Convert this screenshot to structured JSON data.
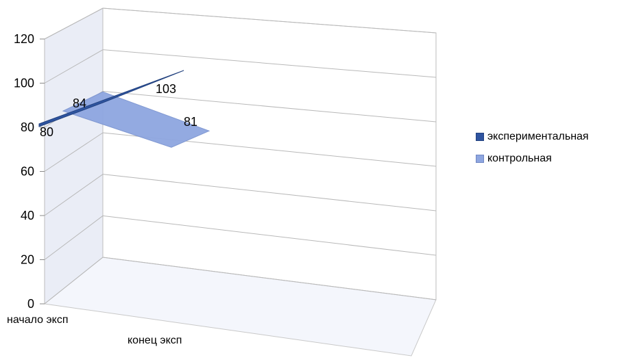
{
  "chart_data": {
    "type": "area",
    "categories": [
      "начало эксп",
      "конец эксп"
    ],
    "series": [
      {
        "name": "экспериментальная",
        "values": [
          80,
          103
        ],
        "color": "#2e54a0"
      },
      {
        "name": "контрольная",
        "values": [
          84,
          81
        ],
        "color": "#8ea6e0"
      }
    ],
    "ylim": [
      0,
      120
    ],
    "yticks": [
      "0",
      "20",
      "40",
      "60",
      "80",
      "100",
      "120"
    ],
    "grid": true,
    "three_d": true,
    "legend_position": "right"
  }
}
